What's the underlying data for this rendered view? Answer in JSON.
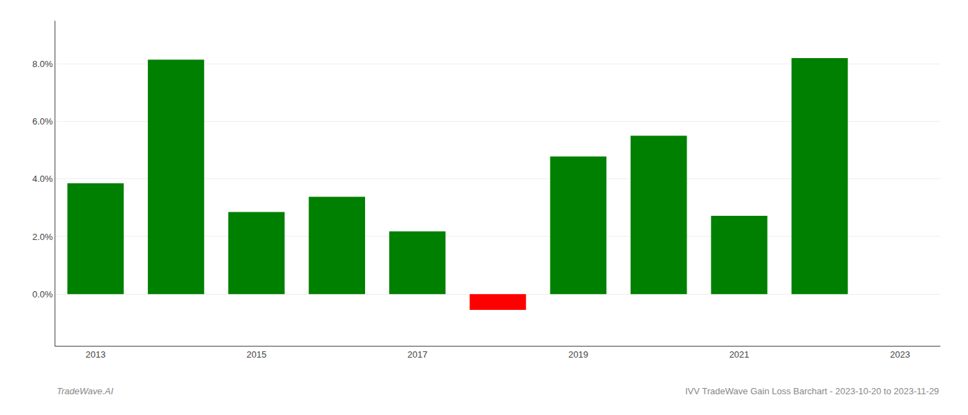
{
  "chart_data": {
    "type": "bar",
    "categories": [
      "2013",
      null,
      "2015",
      null,
      "2017",
      null,
      "2019",
      null,
      "2021",
      null,
      "2023"
    ],
    "values": [
      0.0385,
      0.0815,
      0.0285,
      0.0338,
      0.0218,
      -0.0055,
      0.0478,
      0.055,
      0.0272,
      0.082,
      0.0
    ],
    "colors": [
      "#008000",
      "#008000",
      "#008000",
      "#008000",
      "#008000",
      "#ff0000",
      "#008000",
      "#008000",
      "#008000",
      "#008000",
      "#008000"
    ],
    "ylim": [
      -0.018,
      0.095
    ],
    "yticks": [
      {
        "value": 0.0,
        "label": "0.0%"
      },
      {
        "value": 0.02,
        "label": "2.0%"
      },
      {
        "value": 0.04,
        "label": "4.0%"
      },
      {
        "value": 0.06,
        "label": "6.0%"
      },
      {
        "value": 0.08,
        "label": "8.0%"
      }
    ],
    "grid": true,
    "annotations": [
      "TradeWave.AI",
      "IVV TradeWave Gain Loss Barchart - 2023-10-20 to 2023-11-29"
    ]
  }
}
